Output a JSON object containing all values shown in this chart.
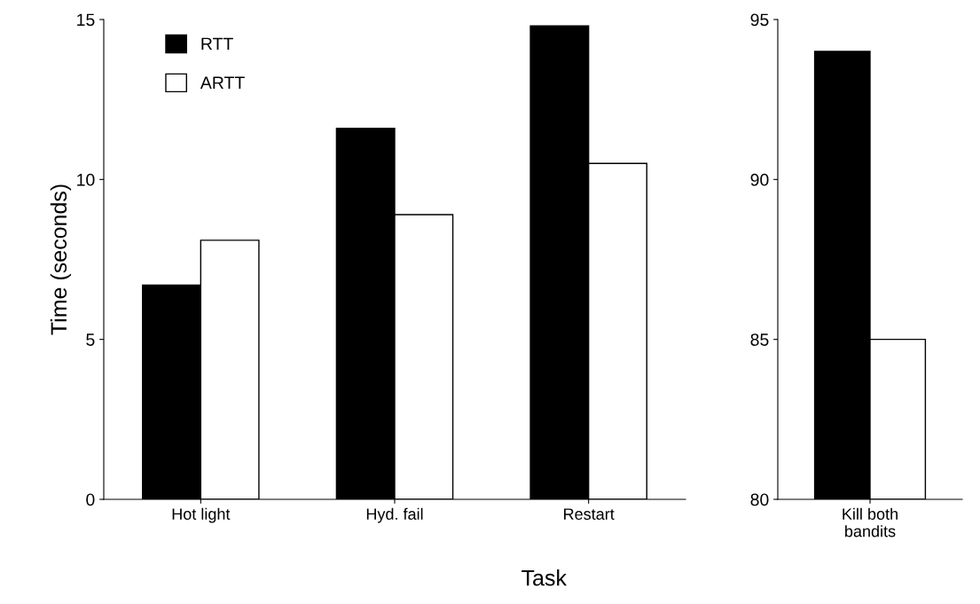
{
  "chart_data": [
    {
      "type": "bar",
      "ylabel": "Time (seconds)",
      "xlabel": "Task",
      "categories": [
        "Hot light",
        "Hyd. fail",
        "Restart"
      ],
      "ylim": [
        0,
        15
      ],
      "yticks": [
        0,
        5,
        10,
        15
      ],
      "legend": "top left",
      "grid": false,
      "series": [
        {
          "name": "RTT",
          "color": "#000000",
          "values": [
            6.7,
            11.6,
            14.8
          ]
        },
        {
          "name": "ARTT",
          "color": "#ffffff",
          "values": [
            8.1,
            8.9,
            10.5
          ]
        }
      ]
    },
    {
      "type": "bar",
      "categories": [
        "Kill both\nbandits"
      ],
      "ylim": [
        80,
        95
      ],
      "yticks": [
        80,
        85,
        90,
        95
      ],
      "grid": false,
      "series": [
        {
          "color": "#000000",
          "values": [
            94
          ]
        },
        {
          "color": "#ffffff",
          "values": [
            85
          ]
        }
      ]
    }
  ]
}
